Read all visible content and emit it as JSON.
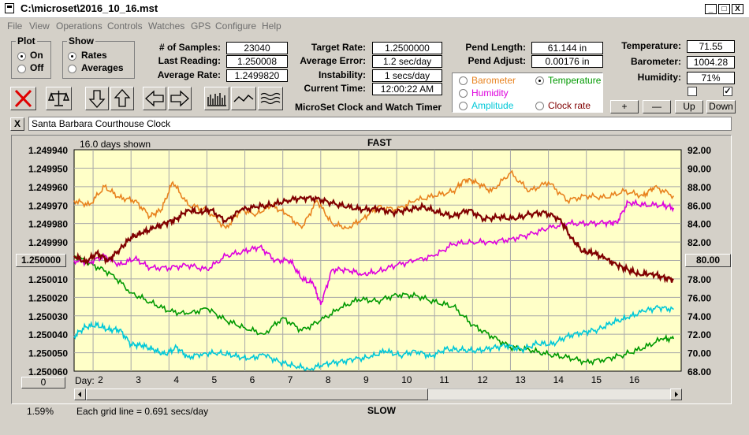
{
  "window": {
    "title": "C:\\microset\\2016_10_16.mst",
    "min": "_",
    "max": "□",
    "close": "X"
  },
  "menu": [
    "File",
    "View",
    "Operations",
    "Controls",
    "Watches",
    "GPS",
    "Configure",
    "Help"
  ],
  "plot_group": {
    "label": "Plot",
    "options": [
      {
        "label": "On",
        "selected": true
      },
      {
        "label": "Off",
        "selected": false
      }
    ]
  },
  "show_group": {
    "label": "Show",
    "options": [
      {
        "label": "Rates",
        "selected": true
      },
      {
        "label": "Averages",
        "selected": false
      }
    ]
  },
  "stats": {
    "samples_label": "# of Samples:",
    "samples": "23040",
    "last_label": "Last Reading:",
    "last": "1.250008",
    "avg_label": "Average Rate:",
    "avg": "1.2499820"
  },
  "target": {
    "target_label": "Target Rate:",
    "target": "1.2500000",
    "err_label": "Average Error:",
    "err": "1.2 sec/day",
    "inst_label": "Instability:",
    "inst": "1 secs/day",
    "time_label": "Current Time:",
    "time": "12:00:22 AM"
  },
  "pend": {
    "len_label": "Pend Length:",
    "len": "61.144 in",
    "adj_label": "Pend Adjust:",
    "adj": "0.00176 in"
  },
  "env": {
    "temp_label": "Temperature:",
    "temp": "71.55",
    "baro_label": "Barometer:",
    "baro": "1004.28",
    "hum_label": "Humidity:",
    "hum": "71%",
    "check1": "",
    "check2": "✓"
  },
  "series_select": [
    {
      "label": "Barometer",
      "color": "#e8821e",
      "selected": false
    },
    {
      "label": "Temperature",
      "color": "#009900",
      "selected": true
    },
    {
      "label": "Humidity",
      "color": "#dd00dd",
      "selected": false
    },
    {
      "label": "Clock rate",
      "color": "#800000",
      "selected": false
    },
    {
      "label": "Amplitude",
      "color": "#00c8d8",
      "selected": false
    }
  ],
  "app_caption": "MicroSet Clock and Watch Timer",
  "adjust_buttons": {
    "plus": "+",
    "minus": "—",
    "up": "Up",
    "down": "Down"
  },
  "clock_name": "Santa Barbara Courthouse Clock",
  "clock_close": "X",
  "chart_data": {
    "type": "line",
    "top_label": "FAST",
    "bottom_label": "SLOW",
    "days_shown": "16.0 days shown",
    "grid_note": "Each grid line = 0.691 secs/day",
    "left_pct": "1.59%",
    "left_zero": "0",
    "left_axis_ticks": [
      "1.249940",
      "1.249950",
      "1.249960",
      "1.249970",
      "1.249980",
      "1.249990",
      "1.250000",
      "1.250010",
      "1.250020",
      "1.250030",
      "1.250040",
      "1.250050",
      "1.250060"
    ],
    "right_axis_ticks": [
      "92.00",
      "90.00",
      "88.00",
      "86.00",
      "84.00",
      "82.00",
      "80.00",
      "78.00",
      "76.00",
      "74.00",
      "72.00",
      "70.00",
      "68.00"
    ],
    "left_highlight": "1.250000",
    "right_highlight": "80.00",
    "x_label": "Day:",
    "x_ticks": [
      "2",
      "3",
      "4",
      "5",
      "6",
      "7",
      "8",
      "9",
      "10",
      "11",
      "12",
      "13",
      "14",
      "15",
      "16"
    ],
    "xlim": [
      1,
      17
    ],
    "ylim_right": [
      68,
      92
    ],
    "series": [
      {
        "name": "Barometer",
        "color": "#e8821e",
        "x": [
          1,
          1.4,
          1.8,
          2.2,
          2.6,
          3,
          3.3,
          3.6,
          4,
          4.5,
          5,
          5.4,
          5.8,
          6.2,
          6.6,
          7,
          7.4,
          7.8,
          8.2,
          8.6,
          9,
          9.5,
          10,
          10.5,
          11,
          11.3,
          11.6,
          12,
          12.5,
          13,
          13.5,
          14,
          14.5,
          15,
          15.5,
          16,
          16.3,
          16.8
        ],
        "y": [
          86.5,
          86,
          88,
          86.8,
          86.5,
          84.8,
          85.5,
          88.5,
          86,
          85.5,
          83.5,
          85.5,
          85,
          86,
          85,
          83.5,
          86.5,
          84,
          83.5,
          84.5,
          85.8,
          85.5,
          86.5,
          87,
          87.5,
          88.8,
          88.5,
          87.5,
          89.5,
          87.5,
          88.5,
          86.5,
          87,
          86.8,
          87.5,
          87,
          88,
          87
        ]
      },
      {
        "name": "Temperature",
        "color": "#009900",
        "x": [
          1,
          1.5,
          2,
          2.5,
          3,
          3.5,
          4,
          4.5,
          5,
          5.5,
          6,
          6.5,
          7,
          7.5,
          8,
          8.5,
          9,
          9.5,
          10,
          10.5,
          11,
          11.5,
          12,
          12.5,
          13,
          13.5,
          14,
          14.5,
          15,
          15.5,
          16,
          16.5,
          16.8
        ],
        "y": [
          80.5,
          79.5,
          78.5,
          76.5,
          75.5,
          74.5,
          74.2,
          74.8,
          73.5,
          72.7,
          72,
          73.8,
          72.4,
          73.5,
          74.8,
          75.8,
          75.6,
          76.3,
          76.2,
          75.5,
          75,
          73,
          71.8,
          70.6,
          70.3,
          69.8,
          69.5,
          69,
          69.3,
          69.8,
          70.5,
          71.5,
          71.5
        ]
      },
      {
        "name": "Humidity",
        "color": "#dd00dd",
        "x": [
          1,
          1.4,
          1.8,
          2.2,
          2.6,
          3,
          3.5,
          4,
          4.5,
          5,
          5.5,
          5.9,
          6.3,
          6.7,
          7,
          7.3,
          7.5,
          7.8,
          8.2,
          8.6,
          9,
          9.5,
          10,
          10.5,
          11,
          11.5,
          12,
          12.5,
          13,
          13.5,
          14,
          14.5,
          15,
          15.3,
          15.6,
          16,
          16.5,
          16.8
        ],
        "y": [
          80,
          79.8,
          80.5,
          79.5,
          80.2,
          79.2,
          79.2,
          79.5,
          79,
          80.5,
          81,
          81.5,
          80,
          80,
          78,
          77.5,
          75.2,
          79,
          79,
          78.5,
          78.8,
          79.5,
          80,
          80.5,
          81.8,
          82,
          82,
          82.3,
          82.8,
          83.5,
          84,
          84,
          84.1,
          84.1,
          86.3,
          86,
          86,
          85.7
        ]
      },
      {
        "name": "Clock rate",
        "color": "#800000",
        "x": [
          1,
          1.3,
          1.6,
          1.9,
          2.2,
          2.5,
          2.8,
          3.1,
          3.4,
          3.7,
          4,
          4.3,
          4.6,
          5,
          5.4,
          5.8,
          6.2,
          6.6,
          7,
          7.4,
          7.8,
          8.2,
          8.6,
          9,
          9.4,
          9.8,
          10.2,
          10.6,
          11,
          11.4,
          11.8,
          12.2,
          12.6,
          13,
          13.4,
          13.8,
          14.1,
          14.4,
          14.7,
          15,
          15.3,
          15.6,
          15.9,
          16.2,
          16.5,
          16.8
        ],
        "y": [
          80.5,
          79.8,
          80.8,
          80,
          81.2,
          82.5,
          83,
          83.5,
          84,
          84.5,
          85.5,
          85.2,
          85.5,
          84.2,
          85.5,
          85.8,
          86,
          86.5,
          86.8,
          86.7,
          86.2,
          85.8,
          85.5,
          85.6,
          85.2,
          85.5,
          85.8,
          85.2,
          84.8,
          85.5,
          84.5,
          84.7,
          84.5,
          85,
          85.2,
          84.5,
          82.5,
          81,
          80.8,
          80.2,
          79.5,
          79,
          78.5,
          78.6,
          78.2,
          77.9
        ]
      },
      {
        "name": "Amplitude",
        "color": "#00c8d8",
        "x": [
          1,
          1.3,
          1.6,
          1.9,
          2.2,
          2.5,
          2.8,
          3.1,
          3.4,
          3.7,
          4,
          4.4,
          4.8,
          5.2,
          5.6,
          6,
          6.4,
          6.8,
          7.2,
          7.6,
          8,
          8.4,
          8.8,
          9.2,
          9.6,
          10,
          10.4,
          10.8,
          11.2,
          11.6,
          12,
          12.4,
          12.8,
          13.2,
          13.6,
          14,
          14.4,
          14.8,
          15.2,
          15.6,
          16,
          16.4,
          16.8
        ],
        "y": [
          71.8,
          72.8,
          73,
          72.5,
          72.5,
          70.9,
          70.8,
          70.3,
          69.8,
          70.6,
          69.5,
          69.9,
          70,
          69.7,
          69.3,
          69.8,
          69,
          68.6,
          68.2,
          68.8,
          69,
          69.3,
          69.5,
          70.2,
          69.7,
          70.2,
          69.6,
          70.4,
          70.3,
          70.2,
          70.5,
          70.8,
          70.3,
          71,
          70.9,
          71.8,
          72.2,
          72.5,
          73.3,
          73.8,
          74.5,
          74.9,
          74.7
        ]
      }
    ]
  }
}
